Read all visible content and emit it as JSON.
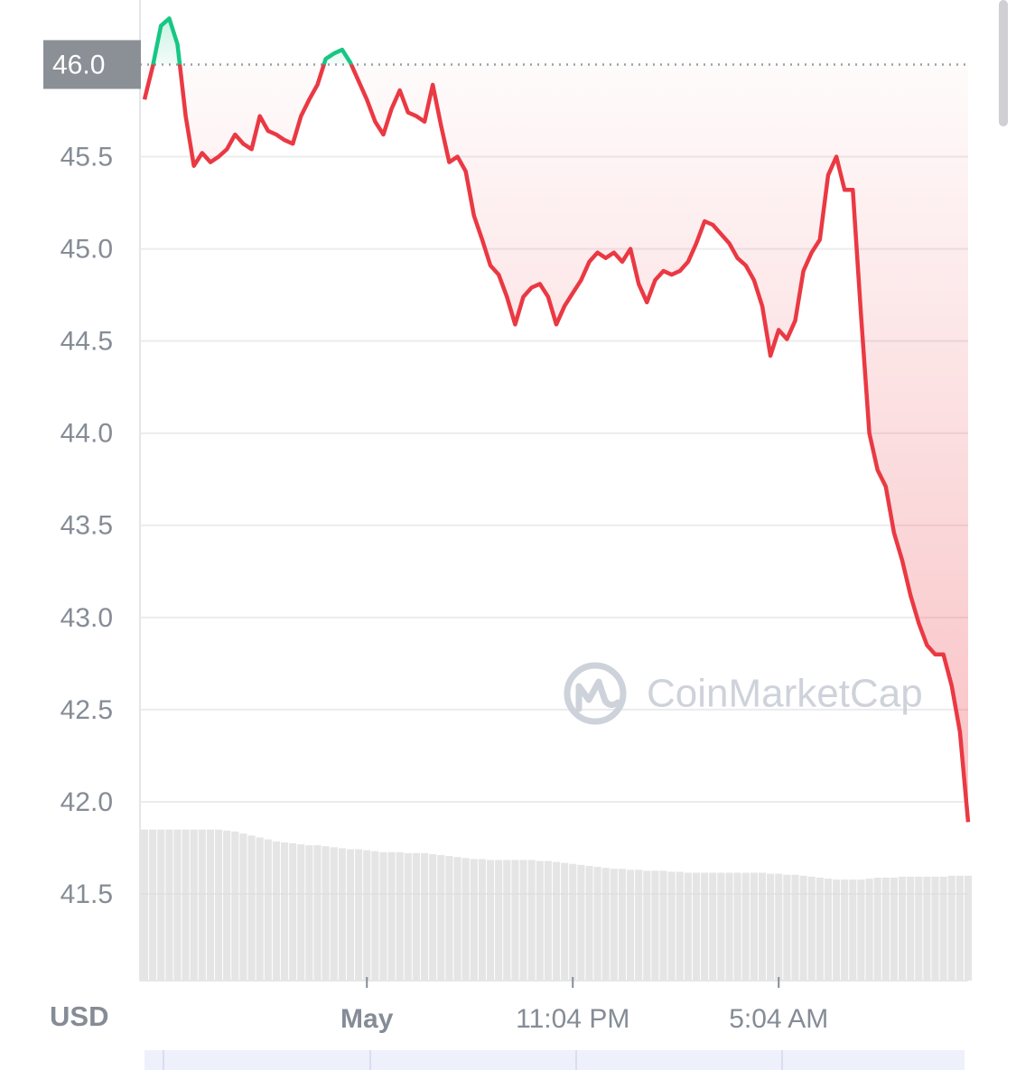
{
  "chart_data": {
    "type": "line",
    "currency": "USD",
    "watermark": "CoinMarketCap",
    "categories": [
      null,
      null,
      null,
      null,
      null,
      null,
      null,
      null,
      null,
      null,
      null,
      null,
      null,
      null,
      null,
      null,
      null,
      null,
      null,
      null,
      null,
      null,
      null,
      null,
      null,
      null,
      null,
      "May",
      null,
      null,
      null,
      null,
      null,
      null,
      null,
      null,
      null,
      null,
      null,
      null,
      null,
      null,
      null,
      null,
      null,
      null,
      null,
      null,
      null,
      null,
      null,
      null,
      "11:04 PM",
      null,
      null,
      null,
      null,
      null,
      null,
      null,
      null,
      null,
      null,
      null,
      null,
      null,
      null,
      null,
      null,
      null,
      null,
      null,
      null,
      null,
      null,
      null,
      null,
      "5:04 AM",
      null,
      null,
      null,
      null,
      null,
      null,
      null,
      null,
      null,
      null,
      null,
      null,
      null,
      null,
      null,
      null,
      null,
      null,
      null,
      null,
      null,
      null,
      null
    ],
    "series": [
      {
        "values": [
          45.81,
          45.99,
          46.21,
          46.25,
          46.11,
          45.72,
          45.45,
          45.52,
          45.47,
          45.5,
          45.54,
          45.62,
          45.57,
          45.54,
          45.72,
          45.64,
          45.62,
          45.59,
          45.57,
          45.72,
          45.81,
          45.89,
          46.03,
          46.06,
          46.08,
          46.01,
          45.91,
          45.81,
          45.69,
          45.62,
          45.76,
          45.86,
          45.74,
          45.72,
          45.69,
          45.89,
          45.67,
          45.47,
          45.5,
          45.42,
          45.18,
          45.05,
          44.91,
          44.86,
          44.74,
          44.59,
          44.74,
          44.79,
          44.81,
          44.74,
          44.59,
          44.69,
          44.76,
          44.83,
          44.93,
          44.98,
          44.95,
          44.98,
          44.93,
          45.0,
          44.81,
          44.71,
          44.83,
          44.88,
          44.86,
          44.88,
          44.93,
          45.03,
          45.15,
          45.13,
          45.08,
          45.03,
          44.95,
          44.91,
          44.83,
          44.69,
          44.42,
          44.56,
          44.51,
          44.61,
          44.88,
          44.98,
          45.05,
          45.4,
          45.5,
          45.32,
          45.32,
          44.64,
          44.0,
          43.8,
          43.71,
          43.46,
          43.31,
          43.12,
          42.97,
          42.85,
          42.8,
          42.8,
          42.63,
          42.38,
          41.89
        ]
      },
      {
        "axis": "y2",
        "color": "#dcdcdc",
        "values": [
          15.4,
          15.4,
          15.4,
          15.4,
          15.4,
          15.4,
          15.4,
          15.4,
          15.4,
          15.4,
          15.3,
          15.2,
          15.0,
          14.8,
          14.6,
          14.4,
          14.2,
          14.1,
          14.0,
          13.9,
          13.8,
          13.8,
          13.7,
          13.6,
          13.5,
          13.4,
          13.4,
          13.3,
          13.2,
          13.1,
          13.1,
          13.1,
          13.0,
          13.0,
          13.0,
          12.9,
          12.8,
          12.7,
          12.6,
          12.5,
          12.4,
          12.4,
          12.3,
          12.3,
          12.3,
          12.3,
          12.3,
          12.3,
          12.2,
          12.2,
          12.1,
          12.0,
          11.9,
          11.8,
          11.7,
          11.6,
          11.5,
          11.4,
          11.4,
          11.3,
          11.3,
          11.2,
          11.2,
          11.2,
          11.1,
          11.1,
          11.0,
          11.0,
          11.0,
          11.0,
          11.0,
          11.0,
          11.0,
          11.0,
          11.0,
          11.0,
          10.9,
          10.9,
          10.8,
          10.8,
          10.7,
          10.6,
          10.5,
          10.4,
          10.3,
          10.3,
          10.3,
          10.3,
          10.4,
          10.5,
          10.5,
          10.5,
          10.6,
          10.6,
          10.6,
          10.6,
          10.6,
          10.6,
          10.7,
          10.7,
          10.7
        ]
      }
    ],
    "baseline": 46.0,
    "up_color": "#16c784",
    "down_color": "#ea3943",
    "ylim": [
      41.03,
      46.35
    ],
    "yticks": [
      41.5,
      {
        "value": 42.0,
        "label": "42.0"
      },
      42.5,
      {
        "value": 43.0,
        "label": "43.0"
      },
      43.5,
      {
        "value": 44.0,
        "label": "44.0"
      },
      44.5,
      {
        "value": 45.0,
        "label": "45.0"
      },
      45.5,
      {
        "value": 46.0,
        "label": "46.0"
      }
    ],
    "y2lim": [
      0,
      100
    ],
    "grid": true
  }
}
